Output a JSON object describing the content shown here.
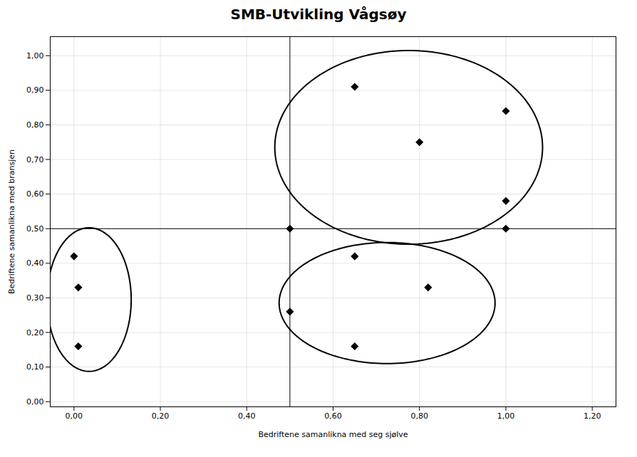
{
  "chart_data": {
    "type": "scatter",
    "title": "SMB-Utvikling Vågsøy",
    "xlabel": "Bedriftene samanlikna med seg sjølve",
    "ylabel": "Bedriftene samanlikna med bransjen",
    "x": [
      0.0,
      0.01,
      0.01,
      0.5,
      0.5,
      0.65,
      0.65,
      0.65,
      0.8,
      0.82,
      1.0,
      1.0,
      1.0
    ],
    "values": [
      0.42,
      0.33,
      0.16,
      0.5,
      0.26,
      0.91,
      0.42,
      0.16,
      0.75,
      0.33,
      0.84,
      0.58,
      0.5
    ],
    "marker": "diamond",
    "ellipses": [
      {
        "cx": 0.035,
        "cy": 0.295,
        "width": 0.195,
        "height": 0.415,
        "angle": 0
      },
      {
        "cx": 0.775,
        "cy": 0.735,
        "width": 0.62,
        "height": 0.56,
        "angle": 0
      },
      {
        "cx": 0.725,
        "cy": 0.285,
        "width": 0.5,
        "height": 0.35,
        "angle": 0
      }
    ],
    "crosshair": {
      "x": 0.5,
      "y": 0.5
    },
    "xlim": [
      -0.055,
      1.255
    ],
    "ylim": [
      -0.015,
      1.055
    ],
    "xticks": [
      {
        "value": 0.0,
        "label": "0,00"
      },
      {
        "value": 0.2,
        "label": "0,20"
      },
      {
        "value": 0.4,
        "label": "0,40"
      },
      {
        "value": 0.6,
        "label": "0,60"
      },
      {
        "value": 0.8,
        "label": "0,80"
      },
      {
        "value": 1.0,
        "label": "1,00"
      },
      {
        "value": 1.2,
        "label": "1,20"
      }
    ],
    "yticks": [
      {
        "value": 0.0,
        "label": "0,00"
      },
      {
        "value": 0.1,
        "label": "0,10"
      },
      {
        "value": 0.2,
        "label": "0,20"
      },
      {
        "value": 0.3,
        "label": "0,30"
      },
      {
        "value": 0.4,
        "label": "0,40"
      },
      {
        "value": 0.5,
        "label": "0,50"
      },
      {
        "value": 0.6,
        "label": "0,60"
      },
      {
        "value": 0.7,
        "label": "0,70"
      },
      {
        "value": 0.8,
        "label": "0,80"
      },
      {
        "value": 0.9,
        "label": "0,90"
      },
      {
        "value": 1.0,
        "label": "1,00"
      }
    ],
    "grid": true
  }
}
